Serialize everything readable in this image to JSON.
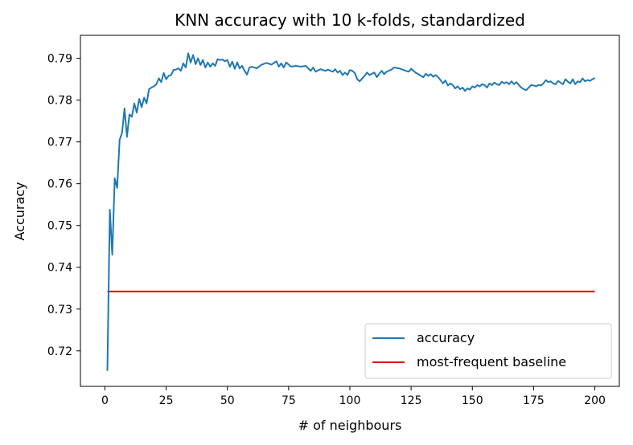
{
  "chart_data": {
    "type": "line",
    "title": "KNN accuracy with 10 k-folds, standardized",
    "xlabel": "# of neighbours",
    "ylabel": "Accuracy",
    "xlim": [
      -10,
      210
    ],
    "ylim": [
      0.7115,
      0.7955
    ],
    "xticks": [
      0,
      25,
      50,
      75,
      100,
      125,
      150,
      175,
      200
    ],
    "yticks": [
      0.72,
      0.73,
      0.74,
      0.75,
      0.76,
      0.77,
      0.78,
      0.79
    ],
    "ytick_labels": [
      "0.72",
      "0.73",
      "0.74",
      "0.75",
      "0.76",
      "0.77",
      "0.78",
      "0.79"
    ],
    "grid": false,
    "legend": "lower-right",
    "series": [
      {
        "name": "accuracy",
        "color": "#1f77b4",
        "points": [
          [
            1,
            0.7152
          ],
          [
            2,
            0.7538
          ],
          [
            3,
            0.743
          ],
          [
            4,
            0.7613
          ],
          [
            5,
            0.759
          ],
          [
            6,
            0.7705
          ],
          [
            7,
            0.7722
          ],
          [
            8,
            0.778
          ],
          [
            9,
            0.7712
          ],
          [
            10,
            0.7766
          ],
          [
            11,
            0.776
          ],
          [
            12,
            0.7792
          ],
          [
            13,
            0.777
          ],
          [
            14,
            0.7803
          ],
          [
            15,
            0.7783
          ],
          [
            16,
            0.7806
          ],
          [
            17,
            0.7792
          ],
          [
            18,
            0.7826
          ],
          [
            19,
            0.783
          ],
          [
            20,
            0.7833
          ],
          [
            21,
            0.7838
          ],
          [
            22,
            0.7852
          ],
          [
            23,
            0.7843
          ],
          [
            24,
            0.7865
          ],
          [
            25,
            0.785
          ],
          [
            26,
            0.7858
          ],
          [
            27,
            0.786
          ],
          [
            28,
            0.7872
          ],
          [
            29,
            0.7873
          ],
          [
            30,
            0.7876
          ],
          [
            31,
            0.787
          ],
          [
            32,
            0.7888
          ],
          [
            33,
            0.7878
          ],
          [
            34,
            0.7912
          ],
          [
            35,
            0.789
          ],
          [
            36,
            0.7908
          ],
          [
            37,
            0.7886
          ],
          [
            38,
            0.79
          ],
          [
            39,
            0.7884
          ],
          [
            40,
            0.7896
          ],
          [
            41,
            0.7878
          ],
          [
            42,
            0.789
          ],
          [
            43,
            0.788
          ],
          [
            44,
            0.7888
          ],
          [
            45,
            0.7882
          ],
          [
            46,
            0.7898
          ],
          [
            47,
            0.7896
          ],
          [
            48,
            0.7897
          ],
          [
            49,
            0.7893
          ],
          [
            50,
            0.7896
          ],
          [
            51,
            0.788
          ],
          [
            52,
            0.7892
          ],
          [
            53,
            0.7875
          ],
          [
            54,
            0.789
          ],
          [
            55,
            0.7876
          ],
          [
            56,
            0.7882
          ],
          [
            57,
            0.787
          ],
          [
            58,
            0.7861
          ],
          [
            59,
            0.7878
          ],
          [
            60,
            0.788
          ],
          [
            62,
            0.7876
          ],
          [
            64,
            0.7885
          ],
          [
            66,
            0.7889
          ],
          [
            68,
            0.7885
          ],
          [
            70,
            0.7893
          ],
          [
            71,
            0.788
          ],
          [
            72,
            0.7888
          ],
          [
            73,
            0.7878
          ],
          [
            74,
            0.789
          ],
          [
            75,
            0.7885
          ],
          [
            76,
            0.788
          ],
          [
            78,
            0.7882
          ],
          [
            80,
            0.788
          ],
          [
            82,
            0.7882
          ],
          [
            84,
            0.787
          ],
          [
            85,
            0.7878
          ],
          [
            86,
            0.7868
          ],
          [
            88,
            0.7874
          ],
          [
            90,
            0.787
          ],
          [
            91,
            0.7873
          ],
          [
            93,
            0.7868
          ],
          [
            94,
            0.7874
          ],
          [
            95,
            0.7866
          ],
          [
            96,
            0.787
          ],
          [
            97,
            0.786
          ],
          [
            98,
            0.7866
          ],
          [
            99,
            0.786
          ],
          [
            100,
            0.7872
          ],
          [
            101,
            0.787
          ],
          [
            102,
            0.7865
          ],
          [
            103,
            0.785
          ],
          [
            104,
            0.7845
          ],
          [
            106,
            0.7858
          ],
          [
            107,
            0.7866
          ],
          [
            108,
            0.786
          ],
          [
            110,
            0.7866
          ],
          [
            111,
            0.7855
          ],
          [
            112,
            0.7863
          ],
          [
            113,
            0.787
          ],
          [
            114,
            0.7862
          ],
          [
            115,
            0.7868
          ],
          [
            117,
            0.7873
          ],
          [
            118,
            0.7878
          ],
          [
            120,
            0.7876
          ],
          [
            122,
            0.7872
          ],
          [
            124,
            0.7868
          ],
          [
            125,
            0.7875
          ],
          [
            126,
            0.787
          ],
          [
            127,
            0.7865
          ],
          [
            128,
            0.7862
          ],
          [
            129,
            0.7858
          ],
          [
            130,
            0.7855
          ],
          [
            131,
            0.7863
          ],
          [
            132,
            0.7858
          ],
          [
            133,
            0.7862
          ],
          [
            134,
            0.7856
          ],
          [
            135,
            0.786
          ],
          [
            136,
            0.7855
          ],
          [
            137,
            0.7848
          ],
          [
            138,
            0.784
          ],
          [
            139,
            0.7847
          ],
          [
            140,
            0.7835
          ],
          [
            141,
            0.784
          ],
          [
            142,
            0.7836
          ],
          [
            143,
            0.7828
          ],
          [
            144,
            0.7833
          ],
          [
            145,
            0.7826
          ],
          [
            146,
            0.783
          ],
          [
            147,
            0.7822
          ],
          [
            148,
            0.7828
          ],
          [
            149,
            0.7825
          ],
          [
            150,
            0.7833
          ],
          [
            151,
            0.783
          ],
          [
            152,
            0.7836
          ],
          [
            153,
            0.7833
          ],
          [
            154,
            0.7838
          ],
          [
            155,
            0.7836
          ],
          [
            156,
            0.783
          ],
          [
            157,
            0.784
          ],
          [
            158,
            0.7836
          ],
          [
            159,
            0.7842
          ],
          [
            160,
            0.7838
          ],
          [
            161,
            0.7836
          ],
          [
            162,
            0.7844
          ],
          [
            163,
            0.784
          ],
          [
            164,
            0.7843
          ],
          [
            165,
            0.7838
          ],
          [
            166,
            0.7845
          ],
          [
            167,
            0.7838
          ],
          [
            168,
            0.7843
          ],
          [
            169,
            0.7836
          ],
          [
            170,
            0.783
          ],
          [
            171,
            0.7826
          ],
          [
            172,
            0.7824
          ],
          [
            173,
            0.783
          ],
          [
            174,
            0.7836
          ],
          [
            175,
            0.7835
          ],
          [
            176,
            0.7833
          ],
          [
            177,
            0.7836
          ],
          [
            178,
            0.7835
          ],
          [
            179,
            0.784
          ],
          [
            180,
            0.7848
          ],
          [
            181,
            0.7843
          ],
          [
            182,
            0.7845
          ],
          [
            183,
            0.784
          ],
          [
            184,
            0.7838
          ],
          [
            185,
            0.7846
          ],
          [
            186,
            0.7842
          ],
          [
            187,
            0.7838
          ],
          [
            188,
            0.785
          ],
          [
            189,
            0.7844
          ],
          [
            190,
            0.784
          ],
          [
            191,
            0.785
          ],
          [
            192,
            0.7838
          ],
          [
            193,
            0.7845
          ],
          [
            194,
            0.7843
          ],
          [
            195,
            0.7852
          ],
          [
            196,
            0.7845
          ],
          [
            197,
            0.7848
          ],
          [
            198,
            0.7846
          ],
          [
            199,
            0.785
          ],
          [
            200,
            0.7853
          ]
        ]
      },
      {
        "name": "most-frequent baseline",
        "color": "#e60000",
        "points": [
          [
            1,
            0.7342
          ],
          [
            200,
            0.7342
          ]
        ]
      }
    ]
  }
}
